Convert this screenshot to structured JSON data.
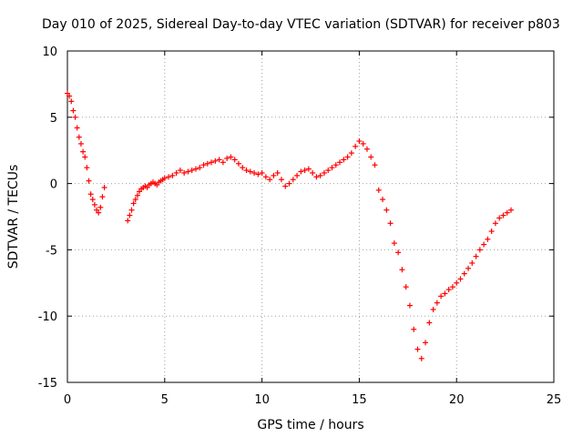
{
  "chart_data": {
    "type": "scatter",
    "title": "Day 010 of 2025, Sidereal Day-to-day VTEC variation (SDTVAR) for receiver p803",
    "xlabel": "GPS time / hours",
    "ylabel": "SDTVAR / TECUs",
    "xlim": [
      0,
      25
    ],
    "ylim": [
      -15,
      10
    ],
    "xticks": [
      0,
      5,
      10,
      15,
      20,
      25
    ],
    "xtick_labels": [
      "0",
      "5",
      "10",
      "15",
      "20",
      "25"
    ],
    "yticks": [
      -15,
      -10,
      -5,
      0,
      5,
      10
    ],
    "ytick_labels": [
      "-15",
      "-10",
      "-5",
      "0",
      "5",
      "10"
    ],
    "grid": true,
    "marker": "+",
    "series": [
      {
        "name": "SDTVAR",
        "color": "#ff0000",
        "x": [
          0.0,
          0.1,
          0.2,
          0.3,
          0.4,
          0.5,
          0.6,
          0.7,
          0.8,
          0.9,
          1.0,
          1.1,
          1.2,
          1.3,
          1.4,
          1.5,
          1.6,
          1.7,
          1.8,
          1.9,
          3.1,
          3.2,
          3.3,
          3.4,
          3.5,
          3.6,
          3.7,
          3.8,
          3.9,
          4.0,
          4.1,
          4.2,
          4.3,
          4.4,
          4.5,
          4.6,
          4.7,
          4.8,
          4.9,
          5.0,
          5.2,
          5.4,
          5.6,
          5.8,
          6.0,
          6.2,
          6.4,
          6.6,
          6.8,
          7.0,
          7.2,
          7.4,
          7.6,
          7.8,
          8.0,
          8.2,
          8.4,
          8.6,
          8.8,
          9.0,
          9.2,
          9.4,
          9.6,
          9.8,
          10.0,
          10.2,
          10.4,
          10.6,
          10.8,
          11.0,
          11.2,
          11.4,
          11.6,
          11.8,
          12.0,
          12.2,
          12.4,
          12.6,
          12.8,
          13.0,
          13.2,
          13.4,
          13.6,
          13.8,
          14.0,
          14.2,
          14.4,
          14.6,
          14.8,
          15.0,
          15.2,
          15.4,
          15.6,
          15.8,
          16.0,
          16.2,
          16.4,
          16.6,
          16.8,
          17.0,
          17.2,
          17.4,
          17.6,
          17.8,
          18.0,
          18.2,
          18.4,
          18.6,
          18.8,
          19.0,
          19.2,
          19.4,
          19.6,
          19.8,
          20.0,
          20.2,
          20.4,
          20.6,
          20.8,
          21.0,
          21.2,
          21.4,
          21.6,
          21.8,
          22.0,
          22.2,
          22.4,
          22.6,
          22.8
        ],
        "y": [
          6.8,
          6.6,
          6.2,
          5.5,
          5.0,
          4.2,
          3.5,
          3.0,
          2.4,
          2.0,
          1.2,
          0.2,
          -0.8,
          -1.2,
          -1.6,
          -2.0,
          -2.2,
          -1.8,
          -1.0,
          -0.3,
          -2.8,
          -2.4,
          -2.0,
          -1.5,
          -1.2,
          -0.9,
          -0.6,
          -0.4,
          -0.3,
          -0.2,
          -0.3,
          -0.1,
          0.0,
          0.1,
          0.0,
          -0.1,
          0.1,
          0.2,
          0.3,
          0.4,
          0.5,
          0.6,
          0.8,
          1.0,
          0.8,
          0.9,
          1.0,
          1.1,
          1.2,
          1.4,
          1.5,
          1.6,
          1.7,
          1.8,
          1.6,
          1.9,
          2.0,
          1.8,
          1.5,
          1.2,
          1.0,
          0.9,
          0.8,
          0.7,
          0.8,
          0.5,
          0.3,
          0.6,
          0.8,
          0.3,
          -0.2,
          0.0,
          0.3,
          0.6,
          0.9,
          1.0,
          1.1,
          0.8,
          0.5,
          0.6,
          0.8,
          1.0,
          1.2,
          1.4,
          1.6,
          1.8,
          2.0,
          2.3,
          2.8,
          3.2,
          3.0,
          2.6,
          2.0,
          1.4,
          -0.5,
          -1.2,
          -2.0,
          -3.0,
          -4.5,
          -5.2,
          -6.5,
          -7.8,
          -9.2,
          -11.0,
          -12.5,
          -13.2,
          -12.0,
          -10.5,
          -9.5,
          -9.0,
          -8.5,
          -8.3,
          -8.0,
          -7.8,
          -7.5,
          -7.2,
          -6.8,
          -6.4,
          -6.0,
          -5.5,
          -5.0,
          -4.6,
          -4.2,
          -3.6,
          -3.0,
          -2.6,
          -2.4,
          -2.2,
          -2.0
        ]
      }
    ]
  }
}
